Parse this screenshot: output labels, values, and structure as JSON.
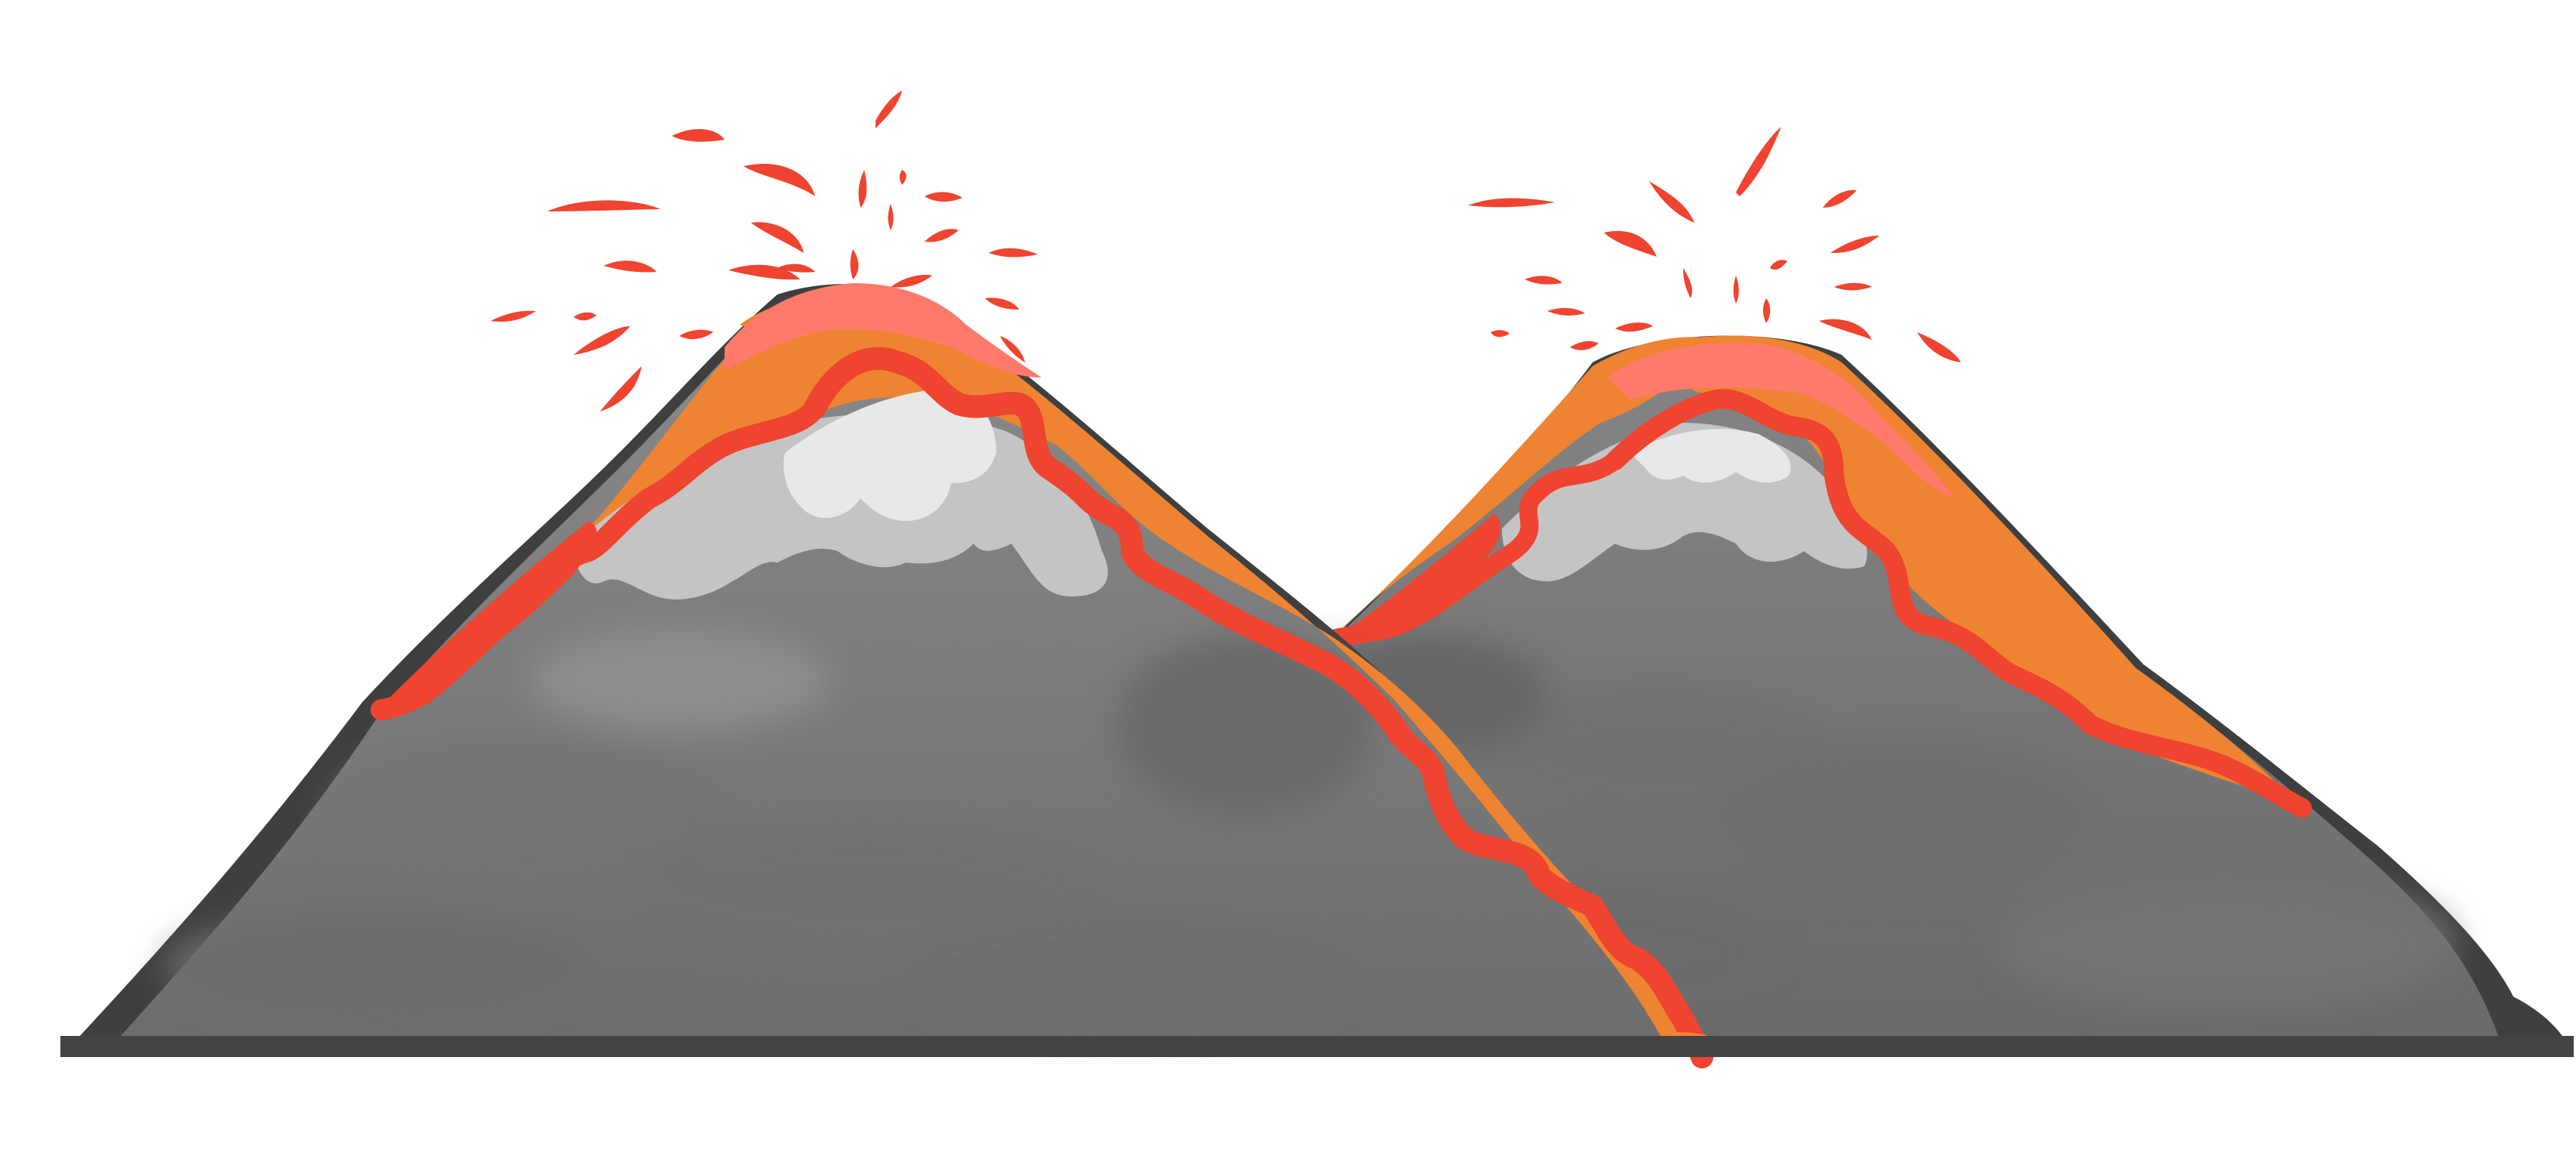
{
  "scene": {
    "subject": "two-erupting-volcanoes",
    "colors": {
      "background": "#ffffff",
      "ground_edge": "#444444",
      "rock_light": "#8a8a8a",
      "rock_mid": "#7a7a7a",
      "rock_dark": "#666666",
      "snow_shadow": "#c4c4c4",
      "snow": "#e8e8e8",
      "lava_orange": "#ee8432",
      "lava_red": "#ef4430",
      "lava_pink": "#ff7a6b"
    }
  }
}
